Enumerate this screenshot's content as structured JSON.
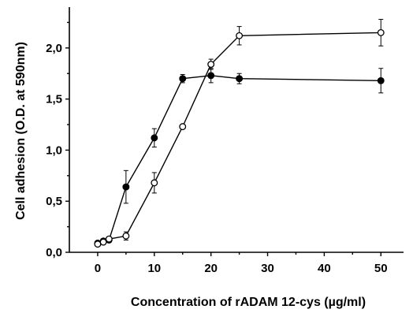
{
  "chart_data": {
    "type": "line",
    "title": "",
    "xlabel": "Concentration of rADAM 12-cys (µg/ml)",
    "ylabel": "Cell adhesion (O.D. at 590nm)",
    "xlim": [
      -5,
      54
    ],
    "ylim": [
      0,
      2.4
    ],
    "x_ticks": [
      0,
      10,
      20,
      30,
      40,
      50
    ],
    "x_tick_labels": [
      "0",
      "10",
      "20",
      "30",
      "40",
      "50"
    ],
    "y_ticks": [
      0,
      0.5,
      1.0,
      1.5,
      2.0
    ],
    "y_tick_labels": [
      "0,0",
      "0,5",
      "1,0",
      "1,5",
      "2,0"
    ],
    "grid": false,
    "legend": "none",
    "series": [
      {
        "marker": "filled-circle",
        "color": "#000000",
        "points": [
          {
            "x": 0,
            "y": 0.09,
            "err": 0.02
          },
          {
            "x": 1,
            "y": 0.11,
            "err": 0.02
          },
          {
            "x": 2,
            "y": 0.12,
            "err": 0.02
          },
          {
            "x": 5,
            "y": 0.64,
            "err": 0.16
          },
          {
            "x": 10,
            "y": 1.12,
            "err": 0.09
          },
          {
            "x": 15,
            "y": 1.7,
            "err": 0.04
          },
          {
            "x": 20,
            "y": 1.73,
            "err": 0.07
          },
          {
            "x": 25,
            "y": 1.7,
            "err": 0.05
          },
          {
            "x": 50,
            "y": 1.68,
            "err": 0.12
          }
        ]
      },
      {
        "marker": "open-circle",
        "color": "#000000",
        "points": [
          {
            "x": 0,
            "y": 0.08,
            "err": 0.02
          },
          {
            "x": 1,
            "y": 0.1,
            "err": 0.02
          },
          {
            "x": 2,
            "y": 0.13,
            "err": 0.02
          },
          {
            "x": 5,
            "y": 0.16,
            "err": 0.04
          },
          {
            "x": 10,
            "y": 0.68,
            "err": 0.1
          },
          {
            "x": 15,
            "y": 1.23,
            "err": 0.02
          },
          {
            "x": 20,
            "y": 1.84,
            "err": 0.05
          },
          {
            "x": 25,
            "y": 2.12,
            "err": 0.09
          },
          {
            "x": 50,
            "y": 2.15,
            "err": 0.13
          }
        ]
      }
    ]
  }
}
